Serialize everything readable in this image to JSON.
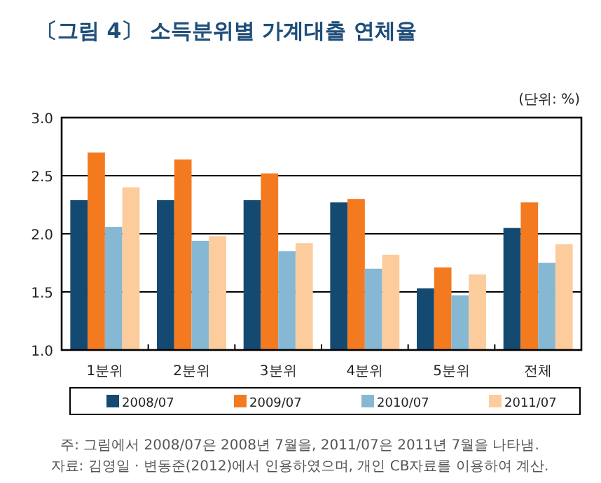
{
  "chart_data": {
    "type": "bar",
    "title": "〔그림 4〕 소득분위별 가계대출 연체율",
    "categories": [
      "1분위",
      "2분위",
      "3분위",
      "4분위",
      "5분위",
      "전체"
    ],
    "series": [
      {
        "name": "2008/07",
        "color": "#144a72",
        "values": [
          2.29,
          2.29,
          2.29,
          2.27,
          1.53,
          2.05
        ]
      },
      {
        "name": "2009/07",
        "color": "#f47a20",
        "values": [
          2.7,
          2.64,
          2.52,
          2.3,
          1.71,
          2.27
        ]
      },
      {
        "name": "2010/07",
        "color": "#86b8d3",
        "values": [
          2.06,
          1.94,
          1.85,
          1.7,
          1.47,
          1.75
        ]
      },
      {
        "name": "2011/07",
        "color": "#fdcc9c",
        "values": [
          2.4,
          1.98,
          1.92,
          1.82,
          1.65,
          1.91
        ]
      }
    ],
    "ylim": [
      1,
      3
    ],
    "yticks": [
      {
        "value": 1,
        "label": "1.0"
      },
      {
        "value": 1.5,
        "label": "1.5"
      },
      {
        "value": 2,
        "label": "2.0"
      },
      {
        "value": 2.5,
        "label": "2.5"
      },
      {
        "value": 3,
        "label": "3.0"
      }
    ],
    "grid": "y",
    "legend": "bottom",
    "annotations": [
      "(단위: %)",
      "주: 그림에서 2008/07은 2008년 7월을, 2011/07은 2011년 7월을 나타냄.",
      "자료: 김영일 · 변동준(2012)에서 인용하였으며, 개인 CB자료를 이용하여 계산."
    ]
  }
}
